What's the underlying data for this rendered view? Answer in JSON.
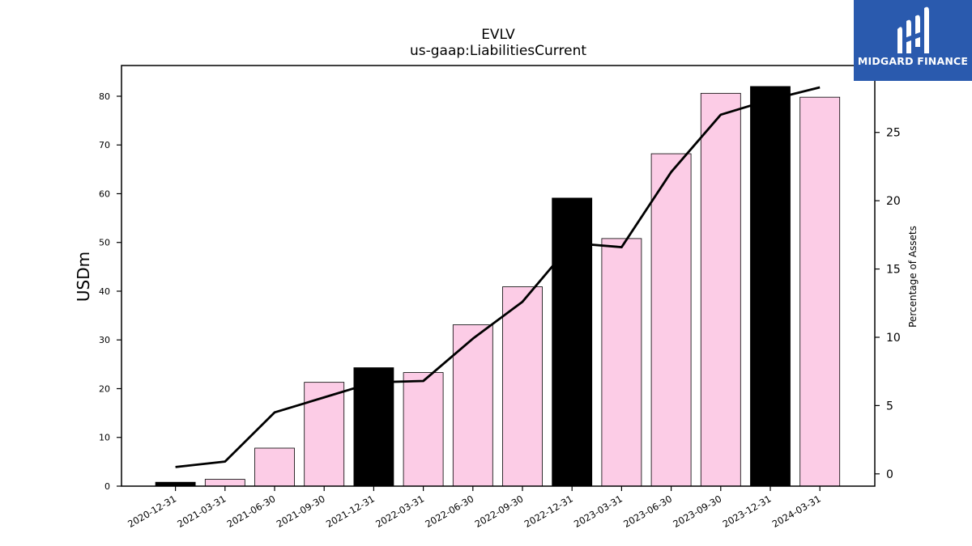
{
  "chart_data": {
    "type": "bar",
    "title": "EVLV",
    "subtitle": "us-gaap:LiabilitiesCurrent",
    "ylabel": "USDm",
    "y2label": "Percentage of Assets",
    "categories": [
      "2020-12-31",
      "2021-03-31",
      "2021-06-30",
      "2021-09-30",
      "2021-12-31",
      "2022-03-31",
      "2022-06-30",
      "2022-09-30",
      "2022-12-31",
      "2023-03-31",
      "2023-06-30",
      "2023-09-30",
      "2023-12-31",
      "2024-03-31"
    ],
    "series": [
      {
        "values": [
          0.8,
          1.4,
          7.8,
          21.3,
          24.3,
          23.3,
          33.1,
          40.9,
          59.1,
          50.8,
          68.2,
          80.6,
          82.0,
          79.8
        ]
      },
      {
        "values": [
          0.5,
          0.9,
          4.5,
          5.6,
          6.7,
          6.8,
          9.9,
          12.6,
          16.9,
          16.6,
          22.1,
          26.3,
          27.4,
          28.3
        ]
      }
    ],
    "bar_colors": [
      "#000000",
      "#fccce6",
      "#fccce6",
      "#fccce6",
      "#000000",
      "#fccce6",
      "#fccce6",
      "#fccce6",
      "#000000",
      "#fccce6",
      "#fccce6",
      "#fccce6",
      "#000000",
      "#fccce6"
    ],
    "ylim": [
      0,
      86.3
    ],
    "yticks": [
      0,
      10,
      20,
      30,
      40,
      50,
      60,
      70,
      80
    ],
    "y2lim": [
      -0.9,
      29.9
    ],
    "y2ticks": [
      0,
      5,
      10,
      15,
      20,
      25
    ],
    "grid": false,
    "line_color": "#000000"
  },
  "logo": {
    "text": "MIDGARD FINANCE",
    "color": "#2a5aae"
  }
}
